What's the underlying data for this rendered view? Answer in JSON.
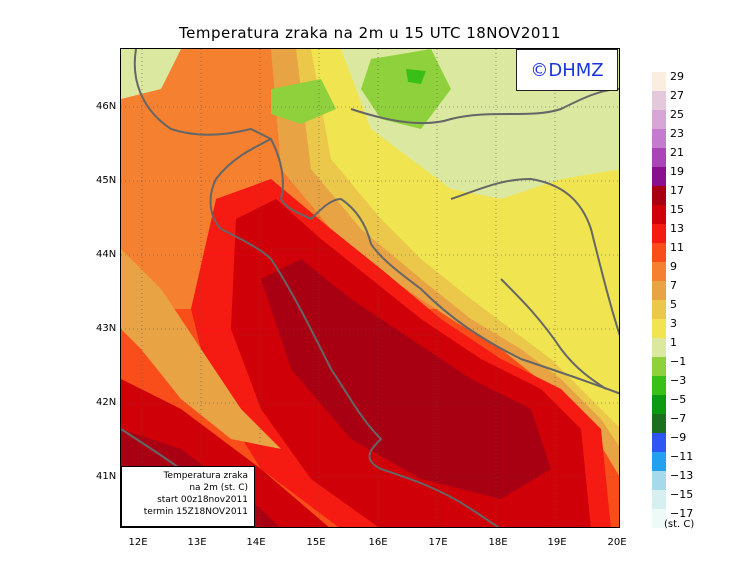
{
  "title": "Temperatura zraka na 2m u 15 UTC 18NOV2011",
  "logo": "©DHMZ",
  "info_box": {
    "line1": "Temperatura zraka",
    "line2": "na 2m (st. C)",
    "line3": "start 00z18nov2011",
    "line4": "termin 15Z18NOV2011"
  },
  "lat_labels": [
    "46N",
    "45N",
    "44N",
    "43N",
    "42N",
    "41N"
  ],
  "lon_labels": [
    "12E",
    "13E",
    "14E",
    "15E",
    "16E",
    "17E",
    "18E",
    "19E",
    "20E"
  ],
  "legend": {
    "unit": "(st. C)",
    "labels": [
      "29",
      "27",
      "25",
      "23",
      "21",
      "19",
      "17",
      "15",
      "13",
      "11",
      "9",
      "7",
      "5",
      "3",
      "1",
      "−1",
      "−3",
      "−5",
      "−7",
      "−9",
      "−11",
      "−13",
      "−15",
      "−17"
    ],
    "colors": [
      "#fbeee1",
      "#e4c8dc",
      "#d5a6d6",
      "#c47bcd",
      "#a945b6",
      "#8a0f8e",
      "#a80012",
      "#cf0008",
      "#f51a12",
      "#fa4e1a",
      "#f58030",
      "#e8a444",
      "#ecc84a",
      "#f0e550",
      "#dbe9a0",
      "#8fd13c",
      "#38c018",
      "#0b9a12",
      "#1c6f1f",
      "#2f56f2",
      "#23a0f0",
      "#a6d9ea",
      "#d8eff2",
      "#eefaf8"
    ]
  }
}
